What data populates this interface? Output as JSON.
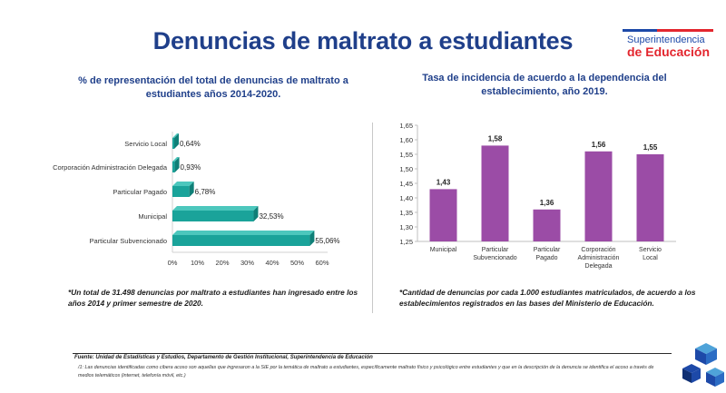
{
  "header": {
    "title": "Denuncias de maltrato a estudiantes",
    "logo_line1": "Superintendencia",
    "logo_line2": "de Educación"
  },
  "colors": {
    "title": "#1f3f8a",
    "teal": "#1aa39a",
    "purple": "#9b4ca6",
    "logo_blue": "#1d49a8",
    "logo_red": "#e3262e"
  },
  "chart_data": [
    {
      "type": "bar",
      "orientation": "horizontal",
      "title": "% de representación del total de denuncias de maltrato a estudiantes años 2014-2020.",
      "categories": [
        "Servicio Local",
        "Corporación Administración Delegada",
        "Particular Pagado",
        "Municipal",
        "Particular Subvencionado"
      ],
      "values": [
        0.64,
        0.93,
        6.78,
        32.53,
        55.06
      ],
      "data_labels": [
        "0,64%",
        "0,93%",
        "6,78%",
        "32,53%",
        "55,06%"
      ],
      "x_ticks": [
        "0%",
        "10%",
        "20%",
        "30%",
        "40%",
        "50%",
        "60%"
      ],
      "xlim": [
        0,
        60
      ],
      "grid": false
    },
    {
      "type": "bar",
      "orientation": "vertical",
      "title": "Tasa de incidencia de acuerdo a la dependencia del establecimiento, año 2019.",
      "categories": [
        "Municipal",
        "Particular Subvencionado",
        "Particular Pagado",
        "Corporación Administración Delegada",
        "Servicio Local"
      ],
      "values": [
        1.43,
        1.58,
        1.36,
        1.56,
        1.55
      ],
      "data_labels": [
        "1,43",
        "1,58",
        "1,36",
        "1,56",
        "1,55"
      ],
      "y_ticks": [
        "1,25",
        "1,30",
        "1,35",
        "1,40",
        "1,45",
        "1,50",
        "1,55",
        "1,60",
        "1,65"
      ],
      "ylim": [
        1.25,
        1.65
      ],
      "grid": false
    }
  ],
  "notes": {
    "left": "*Un total de 31.498 denuncias por maltrato a estudiantes han ingresado entre los años 2014 y primer semestre de 2020.",
    "right": "*Cantidad de denuncias por cada 1.000 estudiantes matriculados, de acuerdo a los establecimientos registrados en las bases del Ministerio de Educación."
  },
  "footer": {
    "source": "Fuente: Unidad de Estadísticas y Estudios, Departamento de Gestión Institucional, Superintendencia de Educación",
    "footnote": "/1: Las denuncias identificadas como cibera acoso son aquellas que ingresaron a la SIE por la temática de maltrato a estudiantes, específicamente maltrato físico y psicológico entre estudiantes y que en la descripción de la denuncia se identifica el acoso a través de medios telemáticos (internet, telefonía móvil, etc.)"
  }
}
